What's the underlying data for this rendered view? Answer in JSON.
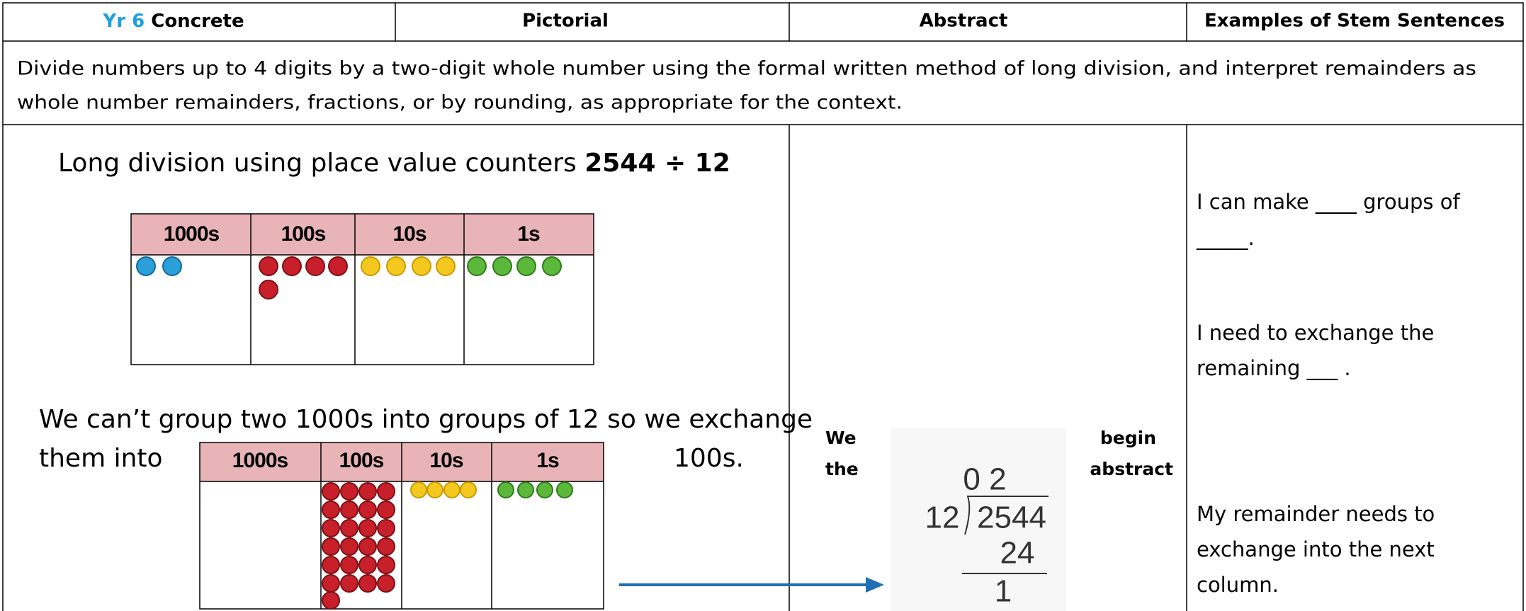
{
  "header": {
    "year": "Yr 6",
    "columns": [
      "Concrete",
      "Pictorial",
      "Abstract",
      "Examples of Stem Sentences"
    ]
  },
  "objective": [
    "Divide numbers up to 4 digits by a two-digit whole number using the formal written method of long division, and interpret remainders as",
    "whole number remainders, fractions, or by rounding, as appropriate for the context."
  ],
  "concrete": {
    "title": "Long division using place value counters",
    "expression": "2544 ÷ 12",
    "place_value_headers": [
      "1000s",
      "100s",
      "10s",
      "1s"
    ],
    "explanation": [
      "We can’t group two 1000s into groups of 12 so we exchange",
      "them into",
      "100s."
    ]
  },
  "abstract": {
    "text": [
      "We",
      "begin",
      "the",
      "abstract"
    ],
    "division": {
      "quotient": "0 2",
      "divisor": "12",
      "dividend": "2544",
      "subtraction": "24",
      "remainder": "1"
    }
  },
  "stem_sentences": [
    [
      "I can make ____ groups of",
      "_____."
    ],
    [
      "I need to exchange the",
      "remaining ___ ."
    ],
    [
      "My remainder needs to",
      "exchange into the next",
      "column."
    ]
  ]
}
